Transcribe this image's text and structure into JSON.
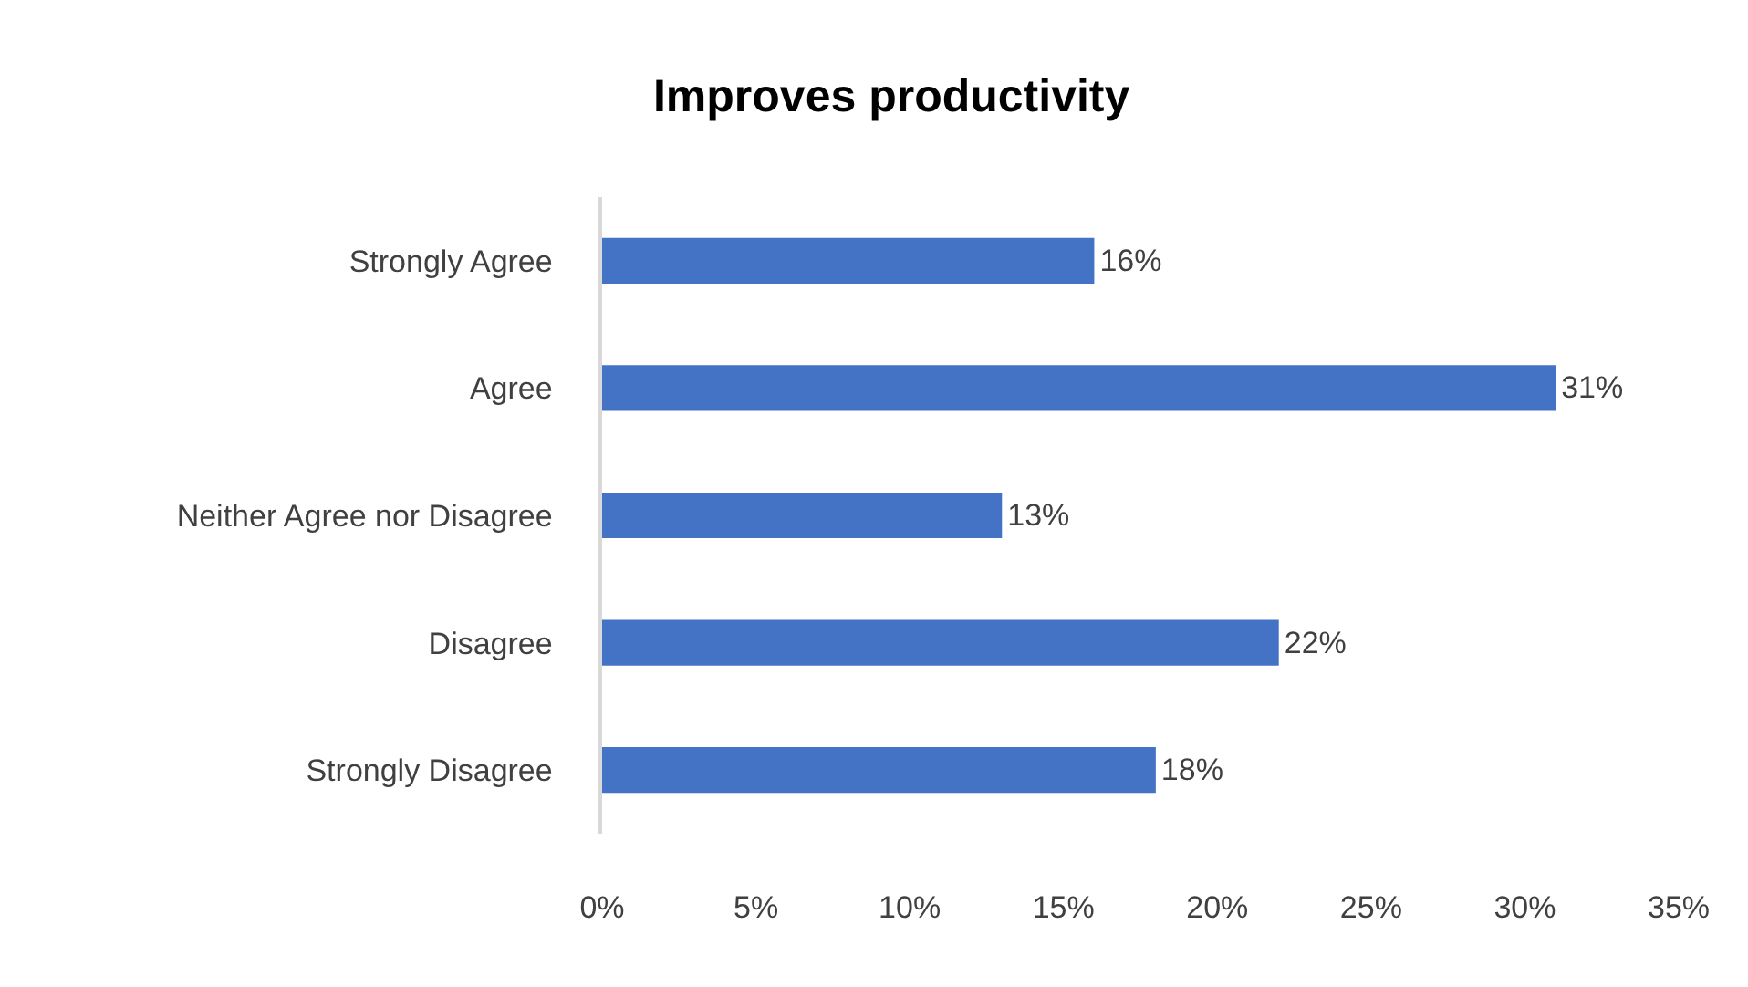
{
  "chart_data": {
    "type": "bar",
    "orientation": "horizontal",
    "title": "Improves productivity",
    "categories": [
      "Strongly Agree",
      "Agree",
      "Neither Agree nor Disagree",
      "Disagree",
      "Strongly Disagree"
    ],
    "values": [
      16,
      31,
      13,
      22,
      18
    ],
    "value_labels": [
      "16%",
      "31%",
      "13%",
      "22%",
      "18%"
    ],
    "color": "#4472c4",
    "xlim": [
      0,
      35
    ],
    "xticks": [
      {
        "value": 0,
        "label": "0%"
      },
      {
        "value": 5,
        "label": "5%"
      },
      {
        "value": 10,
        "label": "10%"
      },
      {
        "value": 15,
        "label": "15%"
      },
      {
        "value": 20,
        "label": "20%"
      },
      {
        "value": 25,
        "label": "25%"
      },
      {
        "value": 30,
        "label": "30%"
      },
      {
        "value": 35,
        "label": "35%"
      }
    ],
    "grid": false
  }
}
